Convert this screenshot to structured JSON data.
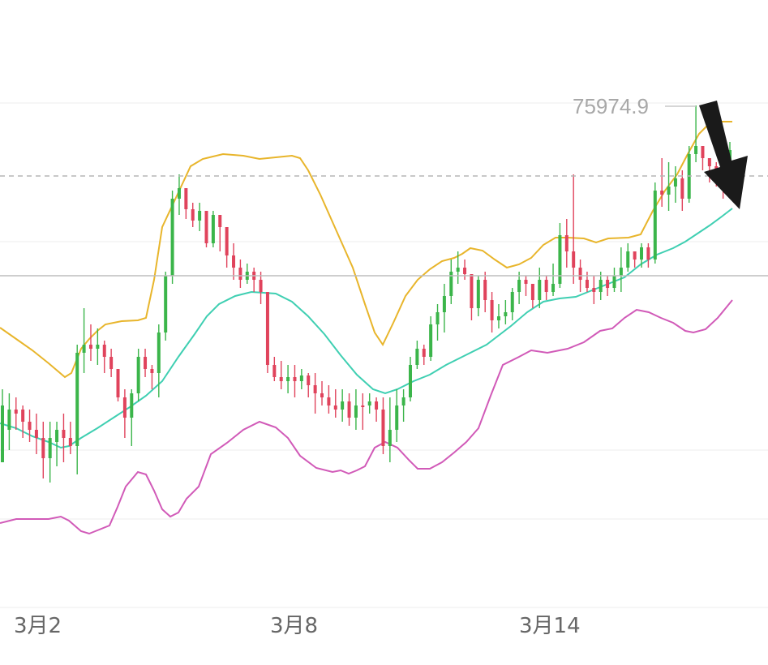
{
  "chart_data": {
    "type": "candlestick",
    "x_ticks": [
      "3月2",
      "3月8",
      "3月14"
    ],
    "max_label": "75974.9",
    "colors": {
      "up": "#3bb54a",
      "down": "#e0435c",
      "upper_band": "#e8b52b",
      "middle_band": "#3fcfb2",
      "lower_band": "#d15ab8",
      "arrow": "#1a1a1a",
      "dashed_line": "#b5b5b5"
    },
    "candles": [
      [
        570,
        480,
        545,
        500
      ],
      [
        530,
        485,
        555,
        505
      ],
      [
        505,
        490,
        530,
        510
      ],
      [
        505,
        500,
        540,
        520
      ],
      [
        520,
        505,
        545,
        530
      ],
      [
        530,
        510,
        560,
        540
      ],
      [
        540,
        520,
        590,
        565
      ],
      [
        565,
        520,
        595,
        540
      ],
      [
        545,
        520,
        575,
        530
      ],
      [
        530,
        510,
        570,
        540
      ],
      [
        540,
        520,
        560,
        550
      ],
      [
        550,
        425,
        585,
        435
      ],
      [
        435,
        380,
        460,
        425
      ],
      [
        425,
        400,
        445,
        430
      ],
      [
        430,
        405,
        450,
        425
      ],
      [
        425,
        420,
        460,
        440
      ],
      [
        440,
        430,
        465,
        455
      ],
      [
        455,
        460,
        495,
        490
      ],
      [
        490,
        480,
        540,
        515
      ],
      [
        515,
        480,
        550,
        485
      ],
      [
        485,
        430,
        495,
        440
      ],
      [
        440,
        430,
        465,
        455
      ],
      [
        455,
        450,
        480,
        460
      ],
      [
        460,
        400,
        490,
        410
      ],
      [
        410,
        335,
        420,
        340
      ],
      [
        340,
        235,
        350,
        245
      ],
      [
        245,
        215,
        265,
        232
      ],
      [
        232,
        245,
        270,
        258
      ],
      [
        258,
        250,
        280,
        272
      ],
      [
        272,
        250,
        285,
        260
      ],
      [
        260,
        275,
        305,
        300
      ],
      [
        300,
        260,
        305,
        265
      ],
      [
        265,
        270,
        310,
        280
      ],
      [
        280,
        310,
        330,
        315
      ],
      [
        315,
        300,
        345,
        330
      ],
      [
        330,
        320,
        355,
        345
      ],
      [
        345,
        325,
        350,
        335
      ],
      [
        335,
        330,
        360,
        345
      ],
      [
        345,
        335,
        375,
        360
      ],
      [
        360,
        380,
        460,
        450
      ],
      [
        450,
        440,
        470,
        465
      ],
      [
        465,
        445,
        480,
        470
      ],
      [
        470,
        450,
        485,
        465
      ],
      [
        465,
        450,
        490,
        470
      ],
      [
        470,
        455,
        480,
        463
      ],
      [
        463,
        460,
        490,
        475
      ],
      [
        475,
        460,
        510,
        485
      ],
      [
        485,
        470,
        500,
        490
      ],
      [
        490,
        475,
        510,
        500
      ],
      [
        500,
        480,
        515,
        505
      ],
      [
        505,
        480,
        520,
        495
      ],
      [
        495,
        485,
        525,
        515
      ],
      [
        515,
        480,
        530,
        500
      ],
      [
        500,
        485,
        530,
        500
      ],
      [
        500,
        485,
        510,
        495
      ],
      [
        495,
        490,
        520,
        505
      ],
      [
        505,
        490,
        560,
        550
      ],
      [
        550,
        490,
        570,
        530
      ],
      [
        530,
        480,
        545,
        500
      ],
      [
        500,
        480,
        520,
        490
      ],
      [
        490,
        440,
        495,
        450
      ],
      [
        450,
        420,
        455,
        430
      ],
      [
        430,
        425,
        450,
        440
      ],
      [
        440,
        390,
        445,
        400
      ],
      [
        400,
        375,
        420,
        385
      ],
      [
        385,
        350,
        410,
        365
      ],
      [
        365,
        320,
        375,
        335
      ],
      [
        335,
        310,
        350,
        330
      ],
      [
        330,
        320,
        345,
        338
      ],
      [
        338,
        350,
        395,
        380
      ],
      [
        380,
        340,
        390,
        345
      ],
      [
        345,
        335,
        385,
        370
      ],
      [
        370,
        360,
        410,
        395
      ],
      [
        395,
        375,
        405,
        390
      ],
      [
        390,
        370,
        400,
        385
      ],
      [
        385,
        355,
        395,
        360
      ],
      [
        360,
        335,
        375,
        345
      ],
      [
        345,
        340,
        365,
        350
      ],
      [
        350,
        360,
        380,
        370
      ],
      [
        370,
        330,
        380,
        345
      ],
      [
        345,
        340,
        370,
        360
      ],
      [
        360,
        325,
        365,
        350
      ],
      [
        350,
        275,
        355,
        290
      ],
      [
        290,
        270,
        330,
        310
      ],
      [
        310,
        215,
        350,
        330
      ],
      [
        330,
        320,
        360,
        345
      ],
      [
        345,
        335,
        360,
        355
      ],
      [
        355,
        340,
        375,
        360
      ],
      [
        360,
        335,
        370,
        345
      ],
      [
        345,
        340,
        365,
        355
      ],
      [
        355,
        330,
        360,
        340
      ],
      [
        340,
        305,
        360,
        330
      ],
      [
        330,
        300,
        335,
        310
      ],
      [
        310,
        310,
        330,
        320
      ],
      [
        320,
        300,
        330,
        305
      ],
      [
        305,
        300,
        330,
        320
      ],
      [
        320,
        225,
        325,
        235
      ],
      [
        235,
        195,
        255,
        240
      ],
      [
        240,
        200,
        260,
        230
      ],
      [
        230,
        205,
        250,
        220
      ],
      [
        220,
        210,
        260,
        245
      ],
      [
        245,
        180,
        250,
        190
      ],
      [
        190,
        130,
        200,
        180
      ],
      [
        180,
        190,
        210,
        195
      ],
      [
        195,
        195,
        225,
        205
      ],
      [
        205,
        200,
        230,
        215
      ],
      [
        215,
        210,
        245,
        225
      ],
      [
        225,
        175,
        240,
        185
      ]
    ],
    "upper_band": [
      [
        0,
        404
      ],
      [
        20,
        418
      ],
      [
        40,
        432
      ],
      [
        60,
        448
      ],
      [
        80,
        465
      ],
      [
        88,
        460
      ],
      [
        100,
        430
      ],
      [
        110,
        418
      ],
      [
        120,
        408
      ],
      [
        130,
        400
      ],
      [
        150,
        396
      ],
      [
        170,
        395
      ],
      [
        180,
        392
      ],
      [
        190,
        345
      ],
      [
        200,
        280
      ],
      [
        215,
        248
      ],
      [
        235,
        205
      ],
      [
        250,
        196
      ],
      [
        275,
        190
      ],
      [
        300,
        192
      ],
      [
        320,
        196
      ],
      [
        340,
        194
      ],
      [
        360,
        192
      ],
      [
        370,
        195
      ],
      [
        380,
        210
      ],
      [
        395,
        240
      ],
      [
        415,
        285
      ],
      [
        435,
        330
      ],
      [
        450,
        375
      ],
      [
        462,
        410
      ],
      [
        472,
        425
      ],
      [
        485,
        398
      ],
      [
        500,
        365
      ],
      [
        515,
        345
      ],
      [
        530,
        332
      ],
      [
        545,
        322
      ],
      [
        560,
        318
      ],
      [
        570,
        313
      ],
      [
        580,
        306
      ],
      [
        595,
        309
      ],
      [
        610,
        320
      ],
      [
        625,
        330
      ],
      [
        640,
        326
      ],
      [
        655,
        318
      ],
      [
        670,
        302
      ],
      [
        685,
        293
      ],
      [
        700,
        293
      ],
      [
        720,
        294
      ],
      [
        735,
        299
      ],
      [
        750,
        294
      ],
      [
        775,
        293
      ],
      [
        790,
        289
      ],
      [
        805,
        260
      ],
      [
        820,
        235
      ],
      [
        835,
        215
      ],
      [
        848,
        190
      ],
      [
        862,
        165
      ],
      [
        875,
        152
      ],
      [
        890,
        150
      ],
      [
        903,
        150
      ]
    ],
    "middle_band": [
      [
        0,
        522
      ],
      [
        20,
        528
      ],
      [
        40,
        538
      ],
      [
        60,
        545
      ],
      [
        75,
        552
      ],
      [
        85,
        550
      ],
      [
        100,
        540
      ],
      [
        120,
        528
      ],
      [
        140,
        515
      ],
      [
        160,
        502
      ],
      [
        180,
        488
      ],
      [
        200,
        470
      ],
      [
        220,
        440
      ],
      [
        240,
        412
      ],
      [
        255,
        390
      ],
      [
        270,
        375
      ],
      [
        290,
        365
      ],
      [
        310,
        360
      ],
      [
        340,
        362
      ],
      [
        360,
        372
      ],
      [
        380,
        390
      ],
      [
        400,
        412
      ],
      [
        420,
        438
      ],
      [
        440,
        462
      ],
      [
        460,
        480
      ],
      [
        475,
        485
      ],
      [
        490,
        480
      ],
      [
        510,
        470
      ],
      [
        530,
        462
      ],
      [
        550,
        450
      ],
      [
        570,
        440
      ],
      [
        600,
        425
      ],
      [
        630,
        402
      ],
      [
        650,
        385
      ],
      [
        670,
        372
      ],
      [
        690,
        368
      ],
      [
        710,
        366
      ],
      [
        730,
        358
      ],
      [
        750,
        350
      ],
      [
        770,
        342
      ],
      [
        790,
        326
      ],
      [
        810,
        314
      ],
      [
        830,
        306
      ],
      [
        845,
        298
      ],
      [
        860,
        288
      ],
      [
        875,
        278
      ],
      [
        890,
        267
      ],
      [
        903,
        257
      ]
    ],
    "lower_band": [
      [
        0,
        645
      ],
      [
        20,
        640
      ],
      [
        40,
        640
      ],
      [
        60,
        640
      ],
      [
        75,
        637
      ],
      [
        85,
        642
      ],
      [
        100,
        655
      ],
      [
        110,
        658
      ],
      [
        120,
        654
      ],
      [
        135,
        648
      ],
      [
        145,
        625
      ],
      [
        155,
        600
      ],
      [
        170,
        582
      ],
      [
        180,
        585
      ],
      [
        190,
        605
      ],
      [
        200,
        628
      ],
      [
        210,
        637
      ],
      [
        220,
        632
      ],
      [
        230,
        615
      ],
      [
        245,
        600
      ],
      [
        260,
        560
      ],
      [
        280,
        546
      ],
      [
        300,
        530
      ],
      [
        320,
        520
      ],
      [
        340,
        527
      ],
      [
        355,
        540
      ],
      [
        370,
        562
      ],
      [
        390,
        577
      ],
      [
        410,
        582
      ],
      [
        420,
        580
      ],
      [
        430,
        584
      ],
      [
        440,
        580
      ],
      [
        450,
        575
      ],
      [
        462,
        552
      ],
      [
        475,
        545
      ],
      [
        490,
        552
      ],
      [
        505,
        568
      ],
      [
        515,
        578
      ],
      [
        530,
        578
      ],
      [
        545,
        570
      ],
      [
        560,
        558
      ],
      [
        575,
        545
      ],
      [
        590,
        528
      ],
      [
        605,
        488
      ],
      [
        620,
        450
      ],
      [
        640,
        440
      ],
      [
        655,
        432
      ],
      [
        675,
        435
      ],
      [
        700,
        430
      ],
      [
        720,
        422
      ],
      [
        740,
        408
      ],
      [
        755,
        405
      ],
      [
        770,
        392
      ],
      [
        785,
        382
      ],
      [
        800,
        385
      ],
      [
        815,
        392
      ],
      [
        830,
        398
      ],
      [
        845,
        408
      ],
      [
        855,
        410
      ],
      [
        870,
        406
      ],
      [
        885,
        392
      ],
      [
        903,
        370
      ]
    ],
    "dashed_level_y": 217,
    "solid_level_y": 340,
    "grid_y": [
      127,
      298,
      555,
      640,
      749
    ]
  }
}
